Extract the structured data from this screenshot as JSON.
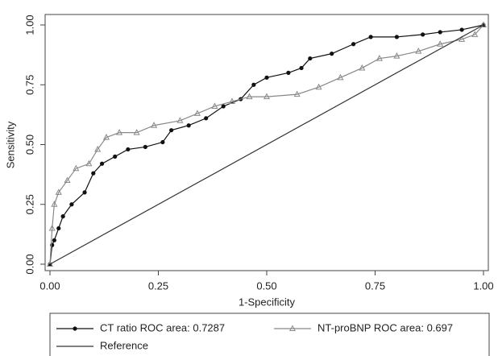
{
  "chart_data": {
    "type": "line",
    "xlabel": "1-Specificity",
    "ylabel": "Sensitivity",
    "xlim": [
      0,
      1
    ],
    "ylim": [
      0,
      1
    ],
    "xticks": [
      {
        "value": 0,
        "label": "0.00"
      },
      {
        "value": 0.25,
        "label": "0.25"
      },
      {
        "value": 0.5,
        "label": "0.50"
      },
      {
        "value": 0.75,
        "label": "0.75"
      },
      {
        "value": 1,
        "label": "1.00"
      }
    ],
    "yticks": [
      {
        "value": 0,
        "label": "0.00"
      },
      {
        "value": 0.25,
        "label": "0.25"
      },
      {
        "value": 0.5,
        "label": "0.50"
      },
      {
        "value": 0.75,
        "label": "0.75"
      },
      {
        "value": 1,
        "label": "1.00"
      }
    ],
    "series": [
      {
        "name": "CT ratio ROC area: 0.7287",
        "color": "#111111",
        "marker": "circle",
        "x": [
          0,
          0.005,
          0.01,
          0.02,
          0.03,
          0.05,
          0.08,
          0.1,
          0.12,
          0.15,
          0.18,
          0.22,
          0.26,
          0.28,
          0.32,
          0.36,
          0.4,
          0.44,
          0.47,
          0.5,
          0.55,
          0.58,
          0.6,
          0.65,
          0.7,
          0.74,
          0.8,
          0.86,
          0.9,
          0.95,
          1
        ],
        "values": [
          0,
          0.08,
          0.1,
          0.15,
          0.2,
          0.25,
          0.3,
          0.38,
          0.42,
          0.45,
          0.48,
          0.49,
          0.51,
          0.56,
          0.58,
          0.61,
          0.66,
          0.69,
          0.75,
          0.78,
          0.8,
          0.82,
          0.86,
          0.88,
          0.92,
          0.95,
          0.95,
          0.96,
          0.97,
          0.98,
          1
        ]
      },
      {
        "name": "NT-proBNP ROC area: 0.697",
        "color": "#888888",
        "marker": "triangle",
        "x": [
          0,
          0.005,
          0.01,
          0.02,
          0.04,
          0.06,
          0.09,
          0.11,
          0.13,
          0.16,
          0.2,
          0.24,
          0.3,
          0.34,
          0.38,
          0.42,
          0.46,
          0.5,
          0.57,
          0.62,
          0.67,
          0.72,
          0.76,
          0.8,
          0.85,
          0.9,
          0.95,
          0.98,
          1
        ],
        "values": [
          0,
          0.15,
          0.25,
          0.3,
          0.35,
          0.4,
          0.42,
          0.48,
          0.53,
          0.55,
          0.55,
          0.58,
          0.6,
          0.63,
          0.66,
          0.68,
          0.7,
          0.7,
          0.71,
          0.74,
          0.78,
          0.82,
          0.86,
          0.87,
          0.89,
          0.92,
          0.94,
          0.96,
          1
        ]
      },
      {
        "name": "Reference",
        "color": "#333333",
        "marker": "none",
        "x": [
          0,
          1
        ],
        "values": [
          0,
          1
        ]
      }
    ]
  }
}
